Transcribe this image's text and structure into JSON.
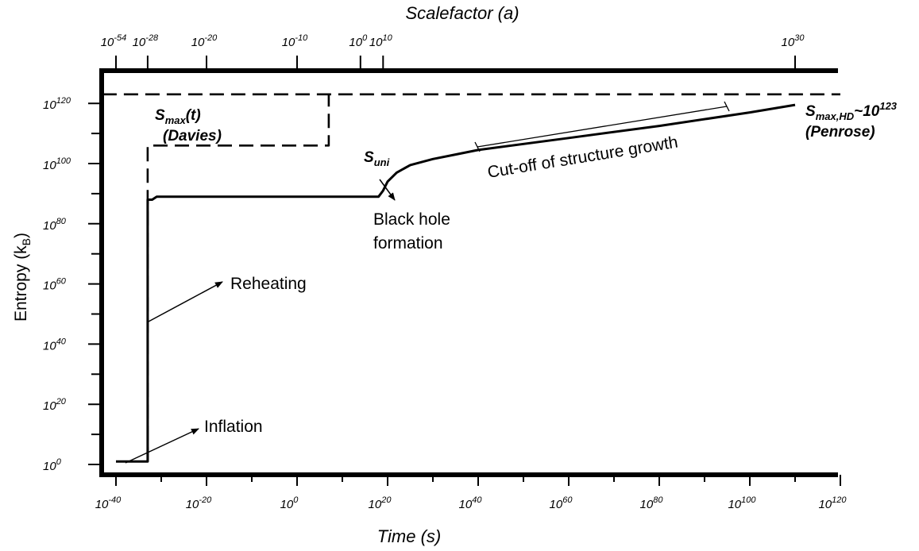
{
  "chart_data": {
    "type": "line",
    "title": "",
    "xlabel": "Time (s)",
    "x2label": "Scalefactor (a)",
    "ylabel": "Entropy (k",
    "ylabel_sub": "B",
    "ylabel_close": ")",
    "x_scale": "log10",
    "y_scale": "log10",
    "xlim_exponent": [
      -43,
      120
    ],
    "ylim_exponent": [
      -3,
      127
    ],
    "x_ticks": [
      {
        "base": "10",
        "exp": "-40",
        "value": -40
      },
      {
        "base": "10",
        "exp": "-20",
        "value": -20
      },
      {
        "base": "10",
        "exp": "0",
        "value": 0
      },
      {
        "base": "10",
        "exp": "20",
        "value": 20
      },
      {
        "base": "10",
        "exp": "40",
        "value": 40
      },
      {
        "base": "10",
        "exp": "60",
        "value": 60
      },
      {
        "base": "10",
        "exp": "80",
        "value": 80
      },
      {
        "base": "10",
        "exp": "100",
        "value": 100
      },
      {
        "base": "10",
        "exp": "120",
        "value": 120
      }
    ],
    "x2_ticks": [
      {
        "base": "10",
        "exp": "-54",
        "time_exp": -40
      },
      {
        "base": "10",
        "exp": "-28",
        "time_exp": -33
      },
      {
        "base": "10",
        "exp": "-20",
        "time_exp": -20
      },
      {
        "base": "10",
        "exp": "-10",
        "time_exp": 0
      },
      {
        "base": "10",
        "exp": "0",
        "time_exp": 14
      },
      {
        "base": "10",
        "exp": "10",
        "time_exp": 19
      },
      {
        "base": "10",
        "exp": "30",
        "time_exp": 110
      }
    ],
    "y_ticks": [
      {
        "base": "10",
        "exp": "0",
        "value": 0
      },
      {
        "base": "10",
        "exp": "20",
        "value": 20
      },
      {
        "base": "10",
        "exp": "40",
        "value": 40
      },
      {
        "base": "10",
        "exp": "60",
        "value": 60
      },
      {
        "base": "10",
        "exp": "80",
        "value": 80
      },
      {
        "base": "10",
        "exp": "100",
        "value": 100
      },
      {
        "base": "10",
        "exp": "120",
        "value": 120
      }
    ],
    "series": [
      {
        "name": "Suni",
        "style": "solid",
        "points": [
          [
            -40,
            1
          ],
          [
            -33,
            1
          ],
          [
            -33,
            88
          ],
          [
            -32,
            88
          ],
          [
            -31,
            89
          ],
          [
            18,
            89
          ],
          [
            19,
            91
          ],
          [
            20,
            94
          ],
          [
            22,
            97
          ],
          [
            25,
            99.5
          ],
          [
            30,
            101.5
          ],
          [
            35,
            103
          ],
          [
            40,
            104.5
          ],
          [
            60,
            108.5
          ],
          [
            80,
            112.5
          ],
          [
            100,
            117
          ],
          [
            110,
            119.5
          ]
        ]
      },
      {
        "name": "Smax(t) (Davies)",
        "style": "dashed",
        "points": [
          [
            -33,
            1
          ],
          [
            -33,
            106
          ],
          [
            7,
            106
          ],
          [
            7,
            123
          ]
        ]
      },
      {
        "name": "Smax,HD~10^123 (Penrose)",
        "style": "dashed",
        "points": [
          [
            -43,
            123
          ],
          [
            120,
            123
          ]
        ]
      }
    ],
    "annotations": {
      "inflation": "Inflation",
      "reheating": "Reheating",
      "black_hole_line1": "Black hole",
      "black_hole_line2": "formation",
      "structure_cutoff": "Cut-off of structure growth",
      "davies_s": "S",
      "davies_sub": "max",
      "davies_rest": "(t)",
      "davies_name": "(Davies)",
      "suni_s": "S",
      "suni_sub": "uni",
      "penrose_s": "S",
      "penrose_sub": "max,HD",
      "penrose_rest": "~10",
      "penrose_sup": "123",
      "penrose_name": "(Penrose)"
    },
    "grid": false,
    "legend": "none",
    "colors": {
      "line": "#000000",
      "background": "#ffffff"
    }
  }
}
